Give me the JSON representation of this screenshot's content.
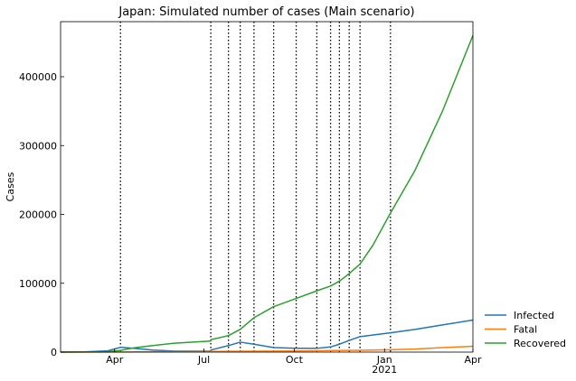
{
  "chart_data": {
    "type": "line",
    "title": "Japan: Simulated number of cases (Main scenario)",
    "xlabel": "",
    "ylabel": "Cases",
    "x_tick_labels": [
      {
        "date": "2020-04-01",
        "label": "Apr",
        "sublabel": ""
      },
      {
        "date": "2020-07-01",
        "label": "Jul",
        "sublabel": ""
      },
      {
        "date": "2020-10-01",
        "label": "Oct",
        "sublabel": ""
      },
      {
        "date": "2021-01-01",
        "label": "Jan",
        "sublabel": "2021"
      },
      {
        "date": "2021-04-01",
        "label": "Apr",
        "sublabel": ""
      }
    ],
    "xlim": [
      "2020-02-06",
      "2021-04-01"
    ],
    "ylim": [
      0,
      480000
    ],
    "y_ticks": [
      0,
      100000,
      200000,
      300000,
      400000
    ],
    "grid": false,
    "legend_position": "outside-right-bottom",
    "change_dates": [
      "2020-04-07",
      "2020-07-08",
      "2020-07-26",
      "2020-08-07",
      "2020-08-21",
      "2020-09-10",
      "2020-10-03",
      "2020-10-24",
      "2020-11-07",
      "2020-11-16",
      "2020-11-26",
      "2020-12-07",
      "2021-01-07"
    ],
    "series": [
      {
        "name": "Infected",
        "color": "#1f77b4",
        "points": [
          [
            "2020-02-06",
            100
          ],
          [
            "2020-03-01",
            300
          ],
          [
            "2020-03-25",
            1800
          ],
          [
            "2020-04-07",
            7000
          ],
          [
            "2020-04-20",
            5500
          ],
          [
            "2020-05-10",
            3000
          ],
          [
            "2020-06-01",
            1500
          ],
          [
            "2020-07-08",
            1500
          ],
          [
            "2020-07-08",
            3000
          ],
          [
            "2020-07-26",
            9500
          ],
          [
            "2020-08-07",
            14500
          ],
          [
            "2020-08-21",
            11500
          ],
          [
            "2020-09-10",
            6500
          ],
          [
            "2020-10-03",
            5500
          ],
          [
            "2020-10-24",
            5500
          ],
          [
            "2020-11-07",
            7500
          ],
          [
            "2020-11-16",
            11500
          ],
          [
            "2020-11-26",
            17000
          ],
          [
            "2020-12-07",
            22500
          ],
          [
            "2021-01-07",
            28000
          ],
          [
            "2021-02-01",
            33000
          ],
          [
            "2021-03-01",
            39500
          ],
          [
            "2021-04-01",
            46500
          ]
        ]
      },
      {
        "name": "Fatal",
        "color": "#ff7f0e",
        "points": [
          [
            "2020-02-06",
            0
          ],
          [
            "2020-04-07",
            150
          ],
          [
            "2020-07-08",
            1000
          ],
          [
            "2020-10-03",
            1700
          ],
          [
            "2020-12-07",
            2600
          ],
          [
            "2021-01-07",
            3500
          ],
          [
            "2021-02-01",
            4500
          ],
          [
            "2021-03-01",
            6500
          ],
          [
            "2021-04-01",
            8500
          ]
        ]
      },
      {
        "name": "Recovered",
        "color": "#2ca02c",
        "points": [
          [
            "2020-02-06",
            0
          ],
          [
            "2020-03-25",
            500
          ],
          [
            "2020-04-07",
            2500
          ],
          [
            "2020-04-20",
            6000
          ],
          [
            "2020-05-10",
            9500
          ],
          [
            "2020-06-01",
            13000
          ],
          [
            "2020-07-08",
            16000
          ],
          [
            "2020-07-08",
            18000
          ],
          [
            "2020-07-26",
            24000
          ],
          [
            "2020-08-07",
            33000
          ],
          [
            "2020-08-21",
            50000
          ],
          [
            "2020-09-10",
            66000
          ],
          [
            "2020-10-03",
            78000
          ],
          [
            "2020-10-24",
            89000
          ],
          [
            "2020-11-07",
            96000
          ],
          [
            "2020-11-16",
            103000
          ],
          [
            "2020-11-26",
            114000
          ],
          [
            "2020-12-07",
            128000
          ],
          [
            "2020-12-20",
            155000
          ],
          [
            "2021-01-07",
            202000
          ],
          [
            "2021-02-01",
            264000
          ],
          [
            "2021-03-01",
            350000
          ],
          [
            "2021-04-01",
            460000
          ]
        ]
      }
    ]
  }
}
